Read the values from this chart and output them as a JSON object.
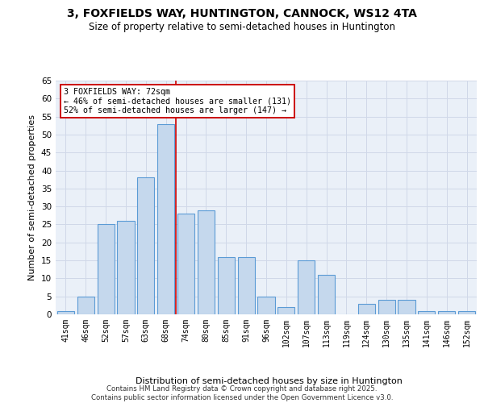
{
  "title": "3, FOXFIELDS WAY, HUNTINGTON, CANNOCK, WS12 4TA",
  "subtitle": "Size of property relative to semi-detached houses in Huntington",
  "xlabel": "Distribution of semi-detached houses by size in Huntington",
  "ylabel": "Number of semi-detached properties",
  "categories": [
    "41sqm",
    "46sqm",
    "52sqm",
    "57sqm",
    "63sqm",
    "68sqm",
    "74sqm",
    "80sqm",
    "85sqm",
    "91sqm",
    "96sqm",
    "102sqm",
    "107sqm",
    "113sqm",
    "119sqm",
    "124sqm",
    "130sqm",
    "135sqm",
    "141sqm",
    "146sqm",
    "152sqm"
  ],
  "values": [
    1,
    5,
    25,
    26,
    38,
    53,
    28,
    29,
    16,
    16,
    5,
    2,
    15,
    11,
    0,
    3,
    4,
    4,
    1,
    1,
    1
  ],
  "bar_color": "#c5d8ed",
  "bar_edge_color": "#5b9bd5",
  "vline_x_idx": 5.5,
  "annotation_title": "3 FOXFIELDS WAY: 72sqm",
  "annotation_line1": "← 46% of semi-detached houses are smaller (131)",
  "annotation_line2": "52% of semi-detached houses are larger (147) →",
  "annotation_box_color": "#ffffff",
  "annotation_box_edge": "#cc0000",
  "vline_color": "#cc0000",
  "ylim": [
    0,
    65
  ],
  "yticks": [
    0,
    5,
    10,
    15,
    20,
    25,
    30,
    35,
    40,
    45,
    50,
    55,
    60,
    65
  ],
  "grid_color": "#d0d8e8",
  "bg_color": "#eaf0f8",
  "footer_line1": "Contains HM Land Registry data © Crown copyright and database right 2025.",
  "footer_line2": "Contains public sector information licensed under the Open Government Licence v3.0."
}
